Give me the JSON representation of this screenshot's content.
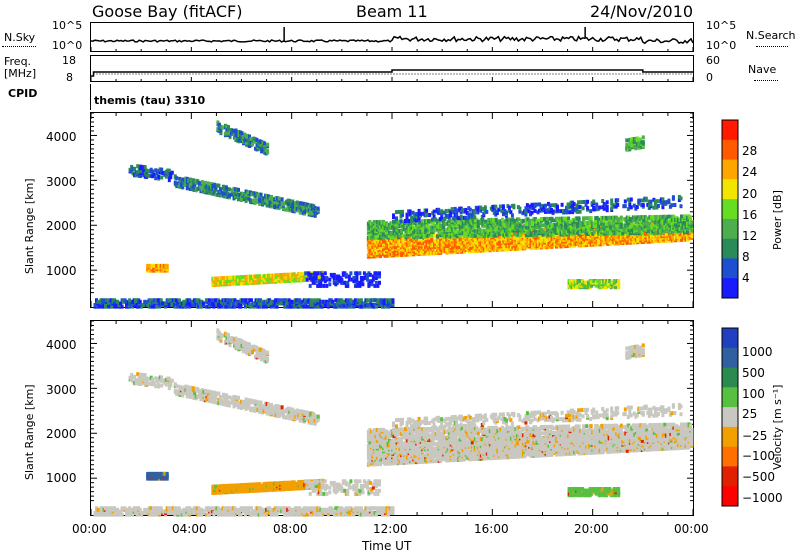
{
  "header": {
    "station": "Goose Bay (fitACF)",
    "beam": "Beam 11",
    "date": "24/Nov/2010"
  },
  "params": {
    "nsky_label": "N.Sky",
    "nsky_ticks": [
      "10^5",
      "10^0"
    ],
    "nsearch_label": "N.Search",
    "nsearch_ticks": [
      "10^5",
      "10^0"
    ],
    "freq_label_1": "Freq.",
    "freq_label_2": "[MHz]",
    "freq_ticks": [
      "18",
      "8"
    ],
    "nave_label": "Nave",
    "nave_ticks": [
      "60",
      "0"
    ],
    "cpid_label": "CPID",
    "cpid_value": "themis (tau) 3310"
  },
  "colors": {
    "power": [
      "#1a1aff",
      "#1e4fd0",
      "#2a8a5a",
      "#4cae4c",
      "#66dd22",
      "#f2e600",
      "#ffa500",
      "#ff5a00",
      "#ff1a00"
    ],
    "velocity": [
      "#2040c0",
      "#3060a0",
      "#2a8a50",
      "#58c040",
      "#c8c8c0",
      "#f2a000",
      "#ff7000",
      "#e02000",
      "#ff0000"
    ]
  },
  "chart_data": [
    {
      "type": "heatmap",
      "ylabel": "Slant Range [km]",
      "xlabel": "",
      "x_ticks": [
        "00:00",
        "04:00",
        "08:00",
        "12:00",
        "16:00",
        "20:00",
        "00:00"
      ],
      "y_ticks": [
        "1000",
        "2000",
        "3000",
        "4000"
      ],
      "xlim_hours": [
        0,
        24
      ],
      "ylim": [
        180,
        4500
      ],
      "colorbar": {
        "label": "Power [dB]",
        "ticks": [
          "4",
          "8",
          "12",
          "16",
          "20",
          "24",
          "28"
        ],
        "range": [
          0,
          30
        ]
      }
    },
    {
      "type": "heatmap",
      "ylabel": "Slant Range [km]",
      "xlabel": "Time UT",
      "x_ticks": [
        "00:00",
        "04:00",
        "08:00",
        "12:00",
        "16:00",
        "20:00",
        "00:00"
      ],
      "y_ticks": [
        "1000",
        "2000",
        "3000",
        "4000"
      ],
      "xlim_hours": [
        0,
        24
      ],
      "ylim": [
        180,
        4500
      ],
      "colorbar": {
        "label": "Velocity [m s⁻¹]",
        "ticks": [
          "1000",
          "500",
          "100",
          "25",
          "−25",
          "−100",
          "−500",
          "−1000"
        ]
      }
    }
  ]
}
